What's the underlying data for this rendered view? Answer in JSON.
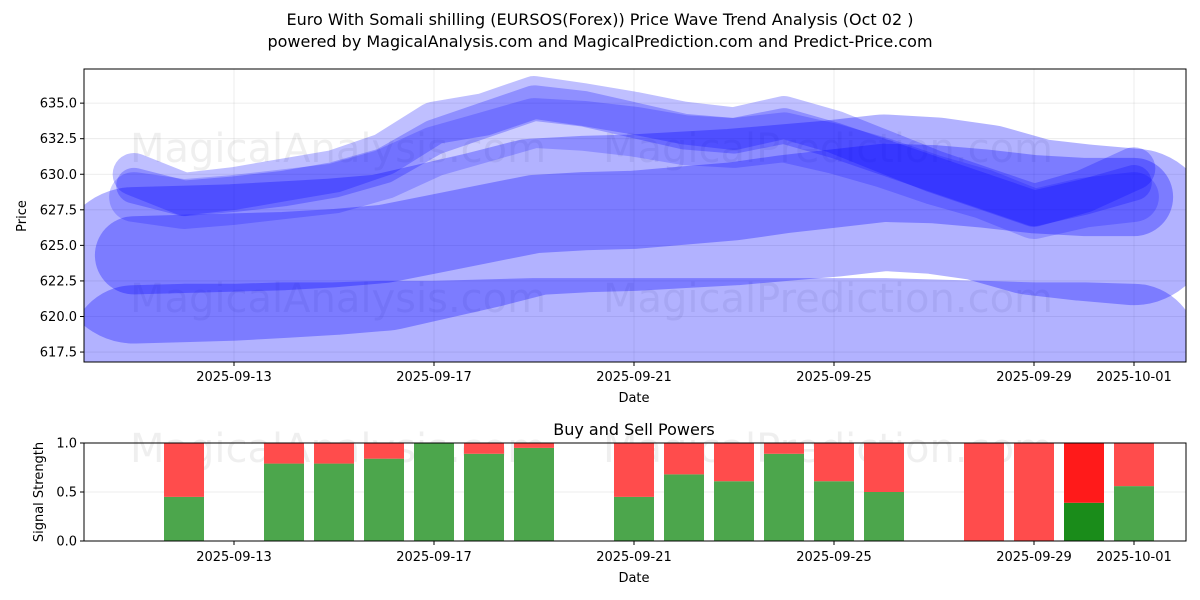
{
  "header": {
    "title": "Euro With Somali shilling (EURSOS(Forex)) Price Wave Trend Analysis (Oct 02 )",
    "subtitle": "powered by MagicalAnalysis.com and MagicalPrediction.com and Predict-Price.com"
  },
  "watermarks": [
    "MagicalAnalysis.com",
    "MagicalPrediction.com"
  ],
  "chart_data": [
    {
      "type": "area",
      "title": "",
      "xlabel": "Date",
      "ylabel": "Price",
      "ylim": [
        616.8,
        637.4
      ],
      "xlim": [
        "2025-09-10",
        "2025-10-02"
      ],
      "grid": true,
      "color": "#0000ff",
      "x_ticks": [
        "2025-09-13",
        "2025-09-17",
        "2025-09-21",
        "2025-09-25",
        "2025-09-29",
        "2025-10-01"
      ],
      "y_ticks": [
        "617.5",
        "620.0",
        "622.5",
        "625.0",
        "627.5",
        "630.0",
        "632.5",
        "635.0"
      ],
      "x": [
        "2025-09-11",
        "2025-09-12",
        "2025-09-13",
        "2025-09-14",
        "2025-09-15",
        "2025-09-16",
        "2025-09-17",
        "2025-09-18",
        "2025-09-19",
        "2025-09-20",
        "2025-09-21",
        "2025-09-22",
        "2025-09-23",
        "2025-09-24",
        "2025-09-25",
        "2025-09-26",
        "2025-09-27",
        "2025-09-28",
        "2025-09-29",
        "2025-09-30",
        "2025-10-01"
      ],
      "series": [
        {
          "name": "wave-upper-1",
          "values": [
            630.0,
            628.6,
            629.0,
            629.6,
            630.2,
            631.4,
            633.6,
            634.2,
            635.4,
            634.9,
            634.3,
            633.6,
            633.2,
            634.0,
            633.0,
            631.6,
            630.2,
            629.0,
            627.8,
            628.8,
            630.4
          ],
          "width": 1.2,
          "alpha": 0.25
        },
        {
          "name": "wave-upper-2",
          "values": [
            629.2,
            628.3,
            628.6,
            629.0,
            629.6,
            630.6,
            632.6,
            633.8,
            635.0,
            634.6,
            633.8,
            633.0,
            632.7,
            633.4,
            632.4,
            631.2,
            630.0,
            628.8,
            627.6,
            628.4,
            629.4
          ],
          "width": 1.0,
          "alpha": 0.25
        },
        {
          "name": "wave-upper-3",
          "values": [
            628.4,
            627.9,
            628.2,
            628.6,
            629.0,
            630.0,
            631.6,
            632.6,
            633.6,
            633.4,
            633.0,
            632.4,
            632.2,
            632.6,
            631.8,
            630.8,
            629.6,
            628.6,
            627.2,
            628.0,
            628.4
          ],
          "width": 1.4,
          "alpha": 0.2
        },
        {
          "name": "wave-middle",
          "values": [
            624.3,
            624.4,
            624.5,
            624.6,
            624.8,
            625.1,
            625.8,
            626.5,
            627.2,
            627.4,
            627.5,
            627.8,
            628.1,
            628.6,
            629.0,
            629.4,
            629.3,
            629.0,
            628.6,
            628.4,
            628.4
          ],
          "width": 2.2,
          "alpha": 0.3
        },
        {
          "name": "wave-middle-wide",
          "values": [
            623.6,
            623.7,
            623.8,
            624.0,
            624.2,
            624.5,
            625.3,
            626.1,
            627.0,
            627.2,
            627.3,
            627.5,
            627.7,
            628.0,
            628.3,
            628.7,
            628.5,
            628.0,
            627.0,
            626.6,
            626.3
          ],
          "width": 4.4,
          "alpha": 0.3
        },
        {
          "name": "wave-lower",
          "values": [
            617.7,
            617.8,
            617.8,
            617.9,
            617.9,
            618.0,
            618.0,
            618.1,
            618.2,
            618.2,
            618.2,
            618.2,
            618.2,
            618.2,
            618.2,
            618.2,
            618.1,
            618.0,
            617.9,
            617.9,
            617.8
          ],
          "width": 3.6,
          "alpha": 0.3
        }
      ]
    },
    {
      "type": "bar",
      "title": "Buy and Sell Powers",
      "xlabel": "Date",
      "ylabel": "Signal Strength",
      "ylim": [
        0.0,
        1.0
      ],
      "y_ticks": [
        "0.0",
        "0.5",
        "1.0"
      ],
      "x_ticks": [
        "2025-09-13",
        "2025-09-17",
        "2025-09-21",
        "2025-09-25",
        "2025-09-29",
        "2025-10-01"
      ],
      "grid": true,
      "colors": {
        "buy": "#4ca64c",
        "sell": "#ff4c4c",
        "buy_strong": "#1a8c1a",
        "sell_strong": "#ff1a1a"
      },
      "categories": [
        "2025-09-12",
        "2025-09-14",
        "2025-09-15",
        "2025-09-16",
        "2025-09-17",
        "2025-09-18",
        "2025-09-19",
        "2025-09-21",
        "2025-09-22",
        "2025-09-23",
        "2025-09-24",
        "2025-09-25",
        "2025-09-26",
        "2025-09-28",
        "2025-09-29",
        "2025-09-30",
        "2025-10-01"
      ],
      "series": [
        {
          "name": "Buy",
          "values": [
            0.45,
            0.79,
            0.79,
            0.84,
            1.0,
            0.89,
            0.95,
            0.45,
            0.68,
            0.61,
            0.89,
            0.61,
            0.5,
            0.0,
            0.0,
            0.39,
            0.56
          ]
        },
        {
          "name": "Sell",
          "values": [
            0.55,
            0.21,
            0.21,
            0.16,
            0.0,
            0.11,
            0.05,
            0.55,
            0.32,
            0.39,
            0.11,
            0.39,
            0.5,
            1.0,
            1.0,
            0.61,
            0.44
          ]
        }
      ],
      "strong": [
        false,
        false,
        false,
        false,
        false,
        false,
        false,
        false,
        false,
        false,
        false,
        false,
        false,
        false,
        false,
        true,
        false
      ]
    }
  ]
}
